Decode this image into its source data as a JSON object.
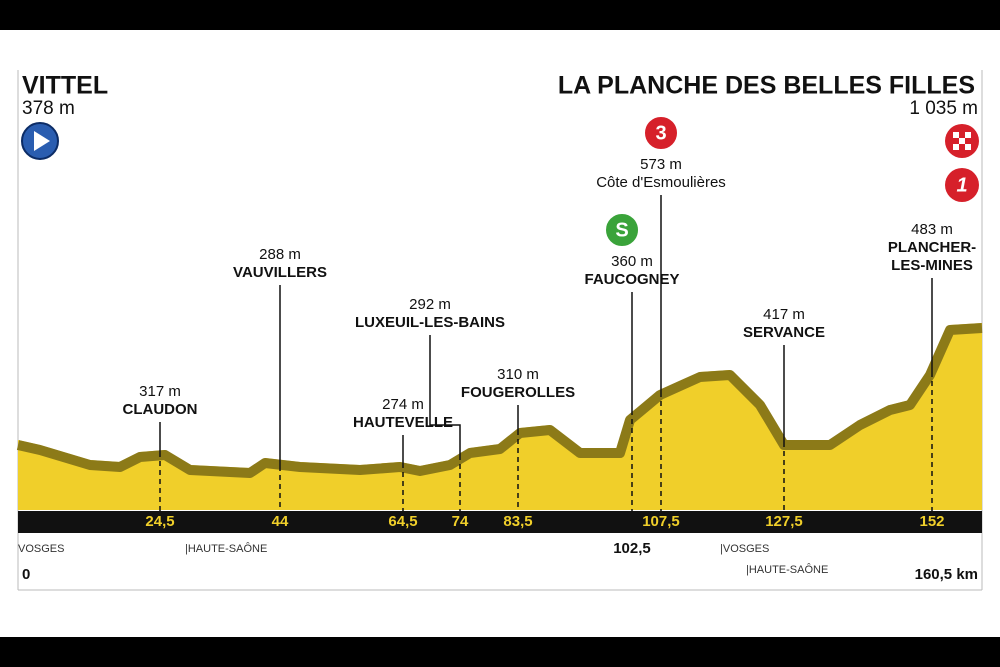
{
  "start": {
    "name": "VITTEL",
    "altitude": "378 m",
    "km": "0"
  },
  "finish": {
    "name": "LA PLANCHE DES BELLES FILLES",
    "altitude": "1 035 m",
    "km": "160,5 km",
    "badge": "1"
  },
  "waypoints": [
    {
      "name": "CLAUDON",
      "altitude": "317 m",
      "km": "24,5"
    },
    {
      "name": "VAUVILLERS",
      "altitude": "288 m",
      "km": "44"
    },
    {
      "name": "HAUTEVELLE",
      "altitude": "274 m",
      "km": "64,5"
    },
    {
      "name": "LUXEUIL-LES-BAINS",
      "altitude": "292 m",
      "km": "74"
    },
    {
      "name": "FOUGEROLLES",
      "altitude": "310 m",
      "km": "83,5"
    },
    {
      "name": "FAUCOGNEY",
      "altitude": "360 m",
      "km": "102,5",
      "badge": "S"
    },
    {
      "name": "Côte d'Esmoulières",
      "altitude": "573 m",
      "km": "107,5",
      "badge": "3"
    },
    {
      "name": "SERVANCE",
      "altitude": "417 m",
      "km": "127,5"
    },
    {
      "name": [
        "PLANCHER-",
        "LES-MINES"
      ],
      "altitude": "483 m",
      "km": "152"
    }
  ],
  "regions": [
    "VOSGES",
    "|HAUTE-SAÔNE",
    "|VOSGES",
    "|HAUTE-SAÔNE"
  ]
}
